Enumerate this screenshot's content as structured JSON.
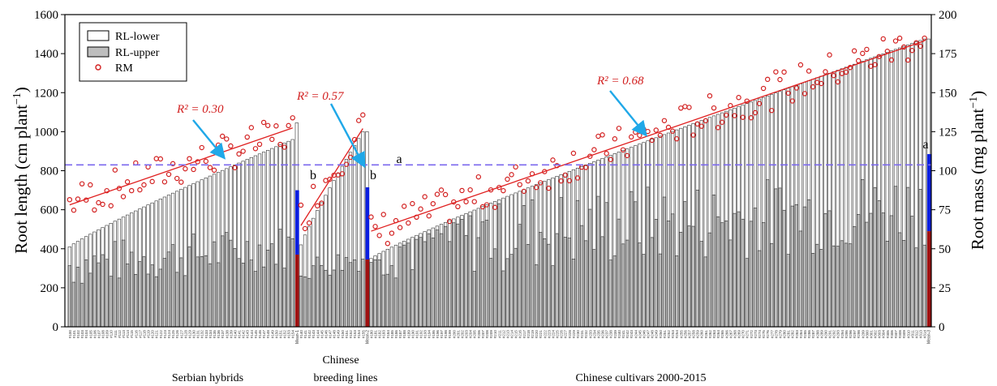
{
  "chart_data": {
    "type": "bar",
    "ylabel_left": "Root length (cm plant",
    "ylabel_left_sup": "−1",
    "ylabel_left_close": ")",
    "ylabel_right": "Root mass (mg plant",
    "ylabel_right_sup": "−1",
    "ylabel_right_close": ")",
    "ylim_left": [
      0,
      1600
    ],
    "ylim_right": [
      0,
      200
    ],
    "yticks_left": [
      0,
      200,
      400,
      600,
      800,
      1000,
      1200,
      1400,
      1600
    ],
    "yticks_right": [
      0,
      25,
      50,
      75,
      100,
      125,
      150,
      175,
      200
    ],
    "legend": [
      {
        "name": "RL-lower",
        "style": "white-bar"
      },
      {
        "name": "RL-upper",
        "style": "grey-bar"
      },
      {
        "name": "RM",
        "style": "red-circle"
      }
    ],
    "reference_line": {
      "value": 830,
      "color": "#7b68ee",
      "style": "dashed"
    },
    "groups": [
      {
        "name": "Serbian hybrids",
        "count": 55,
        "total_range": [
          410,
          960
        ],
        "upper_range": [
          200,
          530
        ],
        "rm_range": [
          80,
          125
        ],
        "mean_label": "Mean-1",
        "mean_total": 1045,
        "mean_upper": 370,
        "mean_blue_top": 700,
        "letter": "b",
        "r2": "R² = 0.30"
      },
      {
        "name": "Chinese breeding lines",
        "count": 16,
        "total_range": [
          420,
          1000
        ],
        "upper_range": [
          230,
          420
        ],
        "rm_range": [
          70,
          130
        ],
        "mean_label": "Mean-2",
        "mean_total": 1000,
        "mean_upper": 345,
        "mean_blue_top": 715,
        "letter": "b",
        "r2": "R² = 0.57"
      },
      {
        "name": "Chinese cultivars 2000-2015",
        "count": 135,
        "total_range": [
          350,
          1475
        ],
        "upper_range": [
          230,
          820
        ],
        "rm_range": [
          60,
          185
        ],
        "mean_label": "Mean-3",
        "mean_total": 1475,
        "mean_upper": 490,
        "mean_blue_top": 885,
        "letter": "a",
        "r2": "R² = 0.68"
      }
    ],
    "group_label_chinese_breeding_line1": "Chinese",
    "group_label_chinese_breeding_line2": "breeding lines"
  },
  "colors": {
    "bar_lower": "#ffffff",
    "bar_upper": "#bdbdbd",
    "rm_marker": "#d21f1f",
    "trend": "#e02020",
    "mean_blue": "#0a1ee0",
    "mean_red": "#a01010",
    "arrow": "#20a8e8",
    "reference": "#7b68ee"
  }
}
